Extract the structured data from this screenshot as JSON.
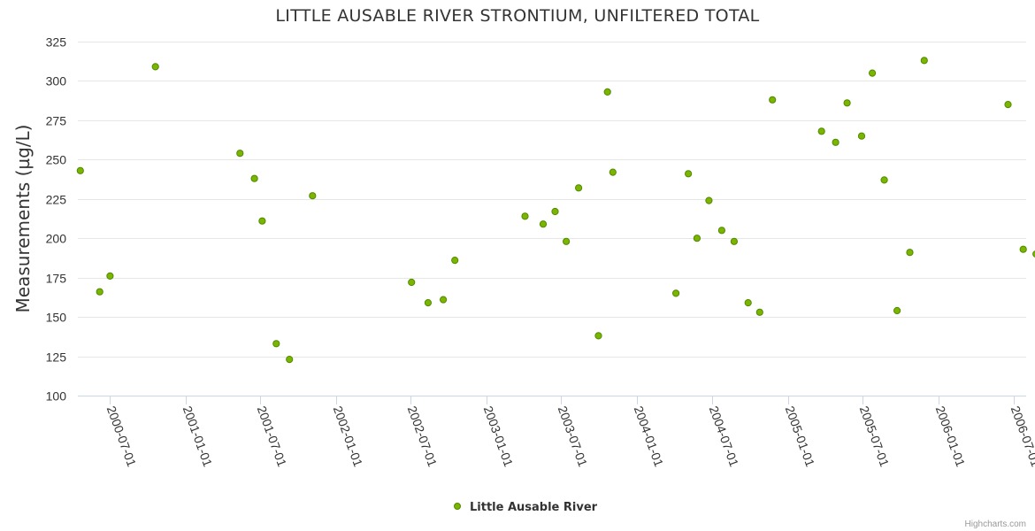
{
  "chart_data": {
    "type": "scatter",
    "title": "LITTLE AUSABLE RIVER STRONTIUM, UNFILTERED TOTAL",
    "ylabel": "Measurements (µg/L)",
    "xlabel": "",
    "ylim": [
      100,
      325
    ],
    "yticks": [
      "100",
      "125",
      "150",
      "175",
      "200",
      "225",
      "250",
      "275",
      "300",
      "325"
    ],
    "xlim": [
      "2000-04-15",
      "2006-08-01"
    ],
    "xticks": [
      "2000-07-01",
      "2001-01-01",
      "2001-07-01",
      "2002-01-01",
      "2002-07-01",
      "2003-01-01",
      "2003-07-01",
      "2004-01-01",
      "2004-07-01",
      "2005-01-01",
      "2005-07-01",
      "2006-01-01",
      "2006-07-01"
    ],
    "grid": true,
    "legend": "bottom-center",
    "series": [
      {
        "name": "Little Ausable River",
        "color": "#7cb500",
        "points": [
          [
            "2000-04-21",
            243
          ],
          [
            "2000-06-07",
            166
          ],
          [
            "2000-07-02",
            176
          ],
          [
            "2000-10-20",
            309
          ],
          [
            "2001-05-13",
            254
          ],
          [
            "2001-06-17",
            238
          ],
          [
            "2001-07-06",
            211
          ],
          [
            "2001-08-09",
            133
          ],
          [
            "2001-09-10",
            123
          ],
          [
            "2001-11-05",
            227
          ],
          [
            "2002-07-03",
            172
          ],
          [
            "2002-08-12",
            159
          ],
          [
            "2002-09-18",
            161
          ],
          [
            "2002-10-16",
            186
          ],
          [
            "2003-04-04",
            214
          ],
          [
            "2003-05-18",
            209
          ],
          [
            "2003-06-16",
            217
          ],
          [
            "2003-07-13",
            198
          ],
          [
            "2003-08-12",
            232
          ],
          [
            "2003-09-29",
            138
          ],
          [
            "2003-10-21",
            293
          ],
          [
            "2003-11-03",
            242
          ],
          [
            "2004-04-04",
            165
          ],
          [
            "2004-05-04",
            241
          ],
          [
            "2004-05-25",
            200
          ],
          [
            "2004-06-23",
            224
          ],
          [
            "2004-07-24",
            205
          ],
          [
            "2004-08-23",
            198
          ],
          [
            "2004-09-26",
            159
          ],
          [
            "2004-10-24",
            153
          ],
          [
            "2004-11-24",
            288
          ],
          [
            "2005-03-23",
            268
          ],
          [
            "2005-04-26",
            261
          ],
          [
            "2005-05-24",
            286
          ],
          [
            "2005-06-28",
            265
          ],
          [
            "2005-07-24",
            305
          ],
          [
            "2005-08-22",
            237
          ],
          [
            "2005-09-22",
            154
          ],
          [
            "2005-10-23",
            191
          ],
          [
            "2005-11-27",
            313
          ],
          [
            "2006-06-18",
            285
          ],
          [
            "2006-07-25",
            193
          ],
          [
            "2006-08-25",
            190
          ]
        ]
      }
    ]
  },
  "credits": "Highcharts.com"
}
